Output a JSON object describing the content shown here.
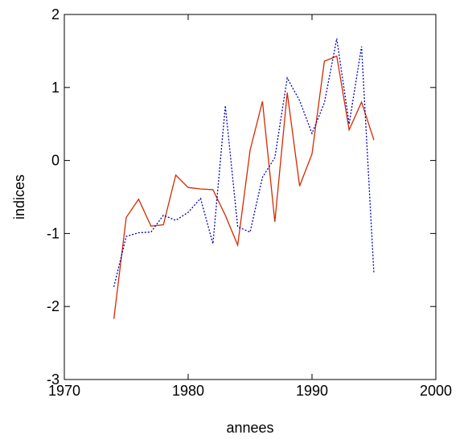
{
  "chart_data": {
    "type": "line",
    "x_label": "annees",
    "y_label": "indices",
    "x": [
      1974,
      1975,
      1976,
      1977,
      1978,
      1979,
      1980,
      1981,
      1982,
      1983,
      1984,
      1985,
      1986,
      1987,
      1988,
      1989,
      1990,
      1991,
      1992,
      1993,
      1994,
      1995
    ],
    "series": [
      {
        "color": "#d42a00",
        "dash": "solid",
        "values": [
          -2.17,
          -0.78,
          -0.53,
          -0.9,
          -0.88,
          -0.2,
          -0.37,
          -0.39,
          -0.4,
          -0.75,
          -1.16,
          0.14,
          0.81,
          -0.84,
          0.93,
          -0.35,
          0.09,
          1.36,
          1.43,
          0.42,
          0.8,
          0.28
        ]
      },
      {
        "color": "#0000c8",
        "dash": "dotted",
        "values": [
          -1.73,
          -1.04,
          -0.99,
          -0.98,
          -0.75,
          -0.82,
          -0.71,
          -0.52,
          -1.14,
          0.75,
          -0.91,
          -0.98,
          -0.23,
          0.04,
          1.13,
          0.82,
          0.37,
          0.79,
          1.67,
          0.5,
          1.56,
          -1.55
        ]
      }
    ],
    "xlim": [
      1970,
      2000
    ],
    "xticks": [
      1970,
      1980,
      1990,
      2000
    ],
    "ylim": [
      -3,
      2
    ],
    "yticks": [
      -3,
      -2,
      -1,
      0,
      1,
      2
    ]
  }
}
